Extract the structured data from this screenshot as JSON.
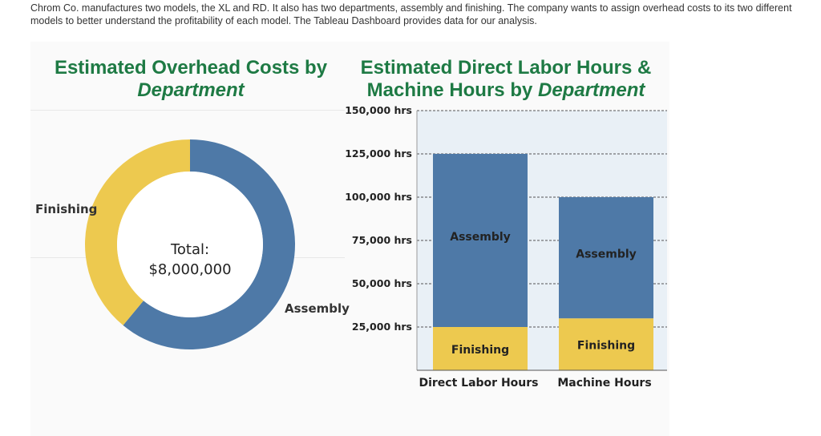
{
  "intro": "Chrom Co. manufactures two models, the XL and RD. It also has two departments, assembly and finishing. The company wants to assign overhead costs to its two different models to better understand the profitability of each model. The Tableau Dashboard provides data for our analysis.",
  "colors": {
    "assembly": "#4e79a7",
    "finishing": "#edc94f",
    "title": "#1e7a44",
    "plot_bg": "#e9f0f6"
  },
  "chart_data": [
    {
      "type": "pie",
      "variant": "donut",
      "title_line1": "Estimated Overhead Costs by",
      "title_line2": "Department",
      "center_label": "Total:",
      "center_value": "$8,000,000",
      "total": 8000000,
      "slices": [
        {
          "label": "Assembly",
          "value": 0.61
        },
        {
          "label": "Finishing",
          "value": 0.39
        }
      ]
    },
    {
      "type": "bar",
      "stacked": true,
      "title_line1": "Estimated Direct Labor Hours &",
      "title_line2_plain": "Machine Hours by ",
      "title_line2_italic": "Department",
      "categories": [
        "Direct Labor Hours",
        "Machine Hours"
      ],
      "series": [
        {
          "name": "Finishing",
          "values": [
            25000,
            30000
          ]
        },
        {
          "name": "Assembly",
          "values": [
            100000,
            70000
          ]
        }
      ],
      "ylim": [
        0,
        150000
      ],
      "yticks": [
        25000,
        50000,
        75000,
        100000,
        125000,
        150000
      ],
      "ytick_labels": [
        "25,000 hrs",
        "50,000 hrs",
        "75,000 hrs",
        "100,000 hrs",
        "125,000 hrs",
        "150,000 hrs"
      ],
      "grid": true
    }
  ]
}
